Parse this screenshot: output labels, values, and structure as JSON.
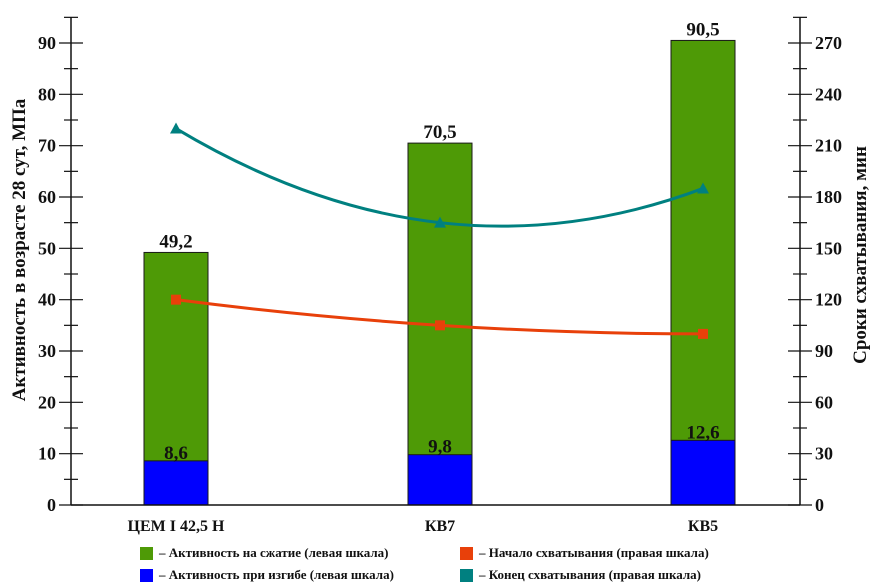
{
  "chart_data": {
    "type": "bar",
    "categories": [
      "ЦЕМ I 42,5 Н",
      "КВ7",
      "КВ5"
    ],
    "bar_series": [
      {
        "name": "– Активность на сжатие (левая шкала)",
        "values": [
          49.2,
          70.5,
          90.5
        ],
        "labels": [
          "49,2",
          "70,5",
          "90,5"
        ],
        "color": "#4e9a06"
      },
      {
        "name": "– Активность при изгибе (левая шкала)",
        "values": [
          8.6,
          9.8,
          12.6
        ],
        "labels": [
          "8,6",
          "9,8",
          "12,6"
        ],
        "color": "#0000ff"
      }
    ],
    "line_series": [
      {
        "name": "– Начало схватывания (правая шкала)",
        "values": [
          120,
          105,
          100
        ],
        "color": "#e8400a",
        "marker": "square"
      },
      {
        "name": "– Конец схватывания (правая шкала)",
        "values": [
          220,
          165,
          185
        ],
        "color": "#008080",
        "marker": "triangle"
      }
    ],
    "ylabel": "Активность в возрасте 28 сут, МПа",
    "y2label": "Сроки схватывания, мин",
    "ylim": [
      0,
      95
    ],
    "yticks": [
      0,
      10,
      20,
      30,
      40,
      50,
      60,
      70,
      80,
      90
    ],
    "y2lim": [
      0,
      285
    ],
    "y2ticks": [
      0,
      30,
      60,
      90,
      120,
      150,
      180,
      210,
      240,
      270
    ],
    "grid": false,
    "legend_position": "bottom"
  }
}
